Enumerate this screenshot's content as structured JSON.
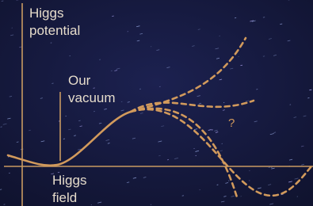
{
  "diagram": {
    "y_axis_label": [
      "Higgs",
      "potential"
    ],
    "vacuum_label": [
      "Our",
      "vacuum"
    ],
    "question_mark": "?",
    "x_axis_label": [
      "Higgs",
      "field"
    ]
  }
}
